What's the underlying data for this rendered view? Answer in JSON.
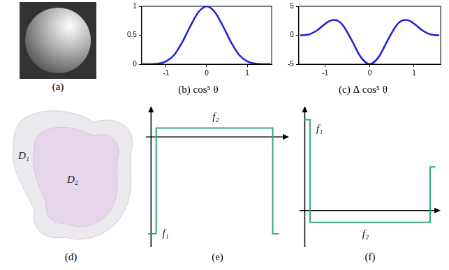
{
  "chart_data": [
    {
      "type": "line",
      "title": "(b) cos⁵ θ",
      "x": [
        -1.57,
        -1.4,
        -1.2,
        -1,
        -0.8,
        -0.6,
        -0.4,
        -0.2,
        0,
        0.2,
        0.4,
        0.6,
        0.8,
        1,
        1.2,
        1.4,
        1.57
      ],
      "values": [
        0,
        0,
        0.01,
        0.05,
        0.16,
        0.38,
        0.66,
        0.9,
        1,
        0.9,
        0.66,
        0.38,
        0.16,
        0.05,
        0.01,
        0,
        0
      ],
      "color": "#1f1fd6",
      "xlim": [
        -1.6,
        1.6
      ],
      "xticks": [
        -1,
        0,
        1
      ],
      "ylim": [
        0,
        1
      ],
      "yticks": [
        0,
        0.5,
        1
      ],
      "grid": false
    },
    {
      "type": "line",
      "title": "(c) Δ cos⁵ θ",
      "x": [
        -1.57,
        -1.4,
        -1.2,
        -1,
        -0.9,
        -0.8,
        -0.7,
        -0.6,
        -0.4,
        -0.2,
        0,
        0.2,
        0.4,
        0.6,
        0.7,
        0.8,
        0.9,
        1,
        1.2,
        1.4,
        1.57
      ],
      "values": [
        0,
        0.09,
        0.79,
        2.0,
        2.48,
        2.65,
        2.41,
        1.67,
        -0.94,
        -3.78,
        -5,
        -3.78,
        -0.94,
        1.67,
        2.41,
        2.65,
        2.48,
        2.0,
        0.79,
        0.09,
        0
      ],
      "color": "#1f1fd6",
      "xlim": [
        -1.6,
        1.6
      ],
      "xticks": [
        -1,
        0,
        1
      ],
      "ylim": [
        -5,
        5
      ],
      "yticks": [
        -5,
        0,
        5
      ],
      "grid": false
    },
    {
      "type": "line",
      "title": "(e)",
      "x": [
        -0.3,
        0.5,
        0.5,
        11.9,
        11.9,
        12.5
      ],
      "values": [
        -11,
        -11,
        1,
        1,
        -11,
        -11
      ],
      "color": "#33aa77",
      "xlim": [
        -0.5,
        13.5
      ],
      "ylim": [
        -12.5,
        3.5
      ],
      "tick_labels": false,
      "grid": false,
      "annotations": [
        {
          "text": "f₁",
          "x": 1.1,
          "y": -11
        },
        {
          "text": "f₂",
          "x": 6,
          "y": 2.2
        }
      ]
    },
    {
      "type": "line",
      "title": "(f)",
      "x": [
        -0.1,
        0.5,
        0.5,
        12,
        12,
        12.5
      ],
      "values": [
        10,
        10,
        -1.3,
        -1.3,
        4.8,
        4.8
      ],
      "color": "#33aa77",
      "xlim": [
        -0.5,
        13
      ],
      "ylim": [
        -4,
        11.5
      ],
      "tick_labels": false,
      "grid": false,
      "annotations": [
        {
          "text": "f₁",
          "x": 1.1,
          "y": 9
        },
        {
          "text": "f₂",
          "x": 5.5,
          "y": -2.6
        }
      ]
    }
  ],
  "images": {
    "a": {
      "title": "(a)"
    },
    "d": {
      "title": "(d)",
      "labels": [
        "D₁",
        "D₂"
      ]
    }
  }
}
